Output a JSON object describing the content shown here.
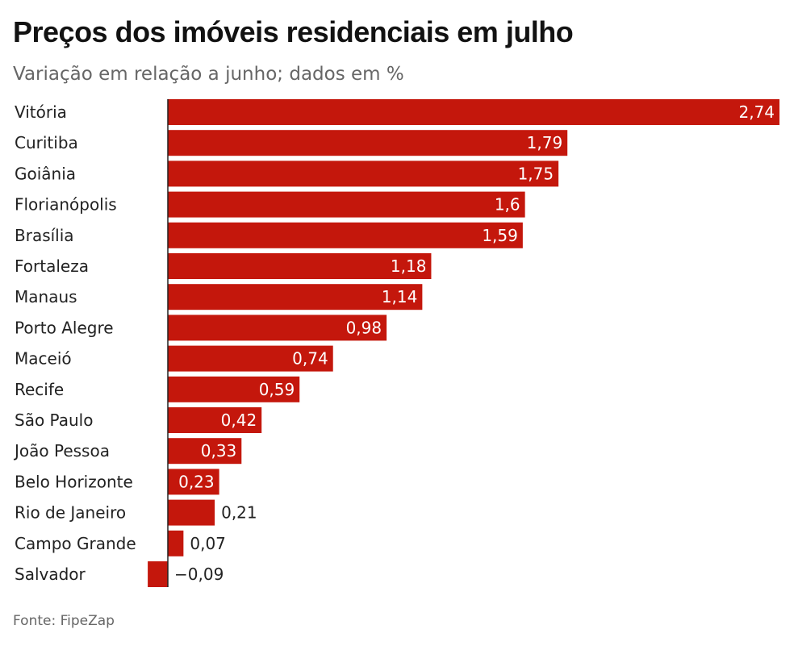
{
  "title": "Preços dos imóveis residenciais em julho",
  "subtitle": "Variação em relação a junho; dados em %",
  "source": "Fonte: FipeZap",
  "colors": {
    "bar": "#c4170c",
    "axis": "#222222",
    "label_inside": "#ffffff",
    "label_outside": "#222222"
  },
  "chart_data": {
    "type": "bar",
    "orientation": "horizontal",
    "categories": [
      "Vitória",
      "Curitiba",
      "Goiânia",
      "Florianópolis",
      "Brasília",
      "Fortaleza",
      "Manaus",
      "Porto Alegre",
      "Maceió",
      "Recife",
      "São Paulo",
      "João Pessoa",
      "Belo Horizonte",
      "Rio de Janeiro",
      "Campo Grande",
      "Salvador"
    ],
    "values": [
      2.74,
      1.79,
      1.75,
      1.6,
      1.59,
      1.18,
      1.14,
      0.98,
      0.74,
      0.59,
      0.42,
      0.33,
      0.23,
      0.21,
      0.07,
      -0.09
    ],
    "value_labels": [
      "2,74",
      "1,79",
      "1,75",
      "1,6",
      "1,59",
      "1,18",
      "1,14",
      "0,98",
      "0,74",
      "0,59",
      "0,42",
      "0,33",
      "0,23",
      "0,21",
      "0,07",
      "−0,09"
    ],
    "xlim": [
      -0.09,
      2.74
    ],
    "grid": false
  }
}
